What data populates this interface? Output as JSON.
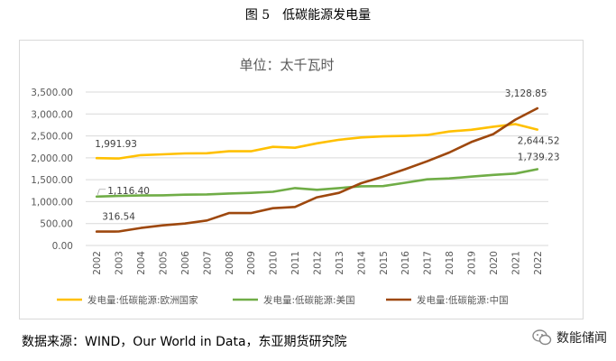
{
  "figure_title": "图 5　低碳能源发电量",
  "source_text": "数据来源：WIND，Our World in Data，东亚期货研究院",
  "brand": {
    "name": "数能储闻",
    "icon": "wechat-icon"
  },
  "chart_data": {
    "type": "line",
    "title": "单位：太千瓦时",
    "xlabel": "",
    "ylabel": "",
    "categories": [
      "2002",
      "2003",
      "2004",
      "2005",
      "2006",
      "2007",
      "2008",
      "2009",
      "2010",
      "2011",
      "2012",
      "2013",
      "2014",
      "2015",
      "2016",
      "2017",
      "2018",
      "2019",
      "2020",
      "2021",
      "2022"
    ],
    "ylim": [
      0,
      3500
    ],
    "yticks": [
      "0.00",
      "500.00",
      "1,000.00",
      "1,500.00",
      "2,000.00",
      "2,500.00",
      "3,000.00",
      "3,500.00"
    ],
    "ytick_values": [
      0,
      500,
      1000,
      1500,
      2000,
      2500,
      3000,
      3500
    ],
    "grid": true,
    "legend_position": "bottom",
    "series": [
      {
        "name": "发电量:低碳能源:欧洲国家",
        "color": "#ffc000",
        "values": [
          1991.93,
          1985,
          2060,
          2080,
          2100,
          2105,
          2150,
          2150,
          2250,
          2230,
          2330,
          2410,
          2465,
          2490,
          2500,
          2520,
          2600,
          2640,
          2710,
          2770,
          2644.52
        ],
        "labels": [
          {
            "index": 0,
            "text": "1,991.93"
          },
          {
            "index": 20,
            "text": "2,644.52"
          }
        ]
      },
      {
        "name": "发电量:低碳能源:美国",
        "color": "#70ad47",
        "values": [
          1116.4,
          1130,
          1140,
          1145,
          1160,
          1165,
          1185,
          1200,
          1225,
          1310,
          1270,
          1310,
          1350,
          1355,
          1430,
          1510,
          1530,
          1570,
          1610,
          1640,
          1739.23
        ],
        "labels": [
          {
            "index": 0,
            "text": "1,116.40"
          },
          {
            "index": 20,
            "text": "1,739.23"
          }
        ]
      },
      {
        "name": "发电量:低碳能源:中国",
        "color": "#9e480e",
        "values": [
          316.54,
          320,
          400,
          460,
          500,
          570,
          740,
          740,
          850,
          880,
          1100,
          1200,
          1420,
          1570,
          1740,
          1920,
          2120,
          2360,
          2540,
          2870,
          3128.85
        ],
        "labels": [
          {
            "index": 0,
            "text": "316.54"
          },
          {
            "index": 20,
            "text": "3,128.85"
          }
        ]
      }
    ]
  }
}
